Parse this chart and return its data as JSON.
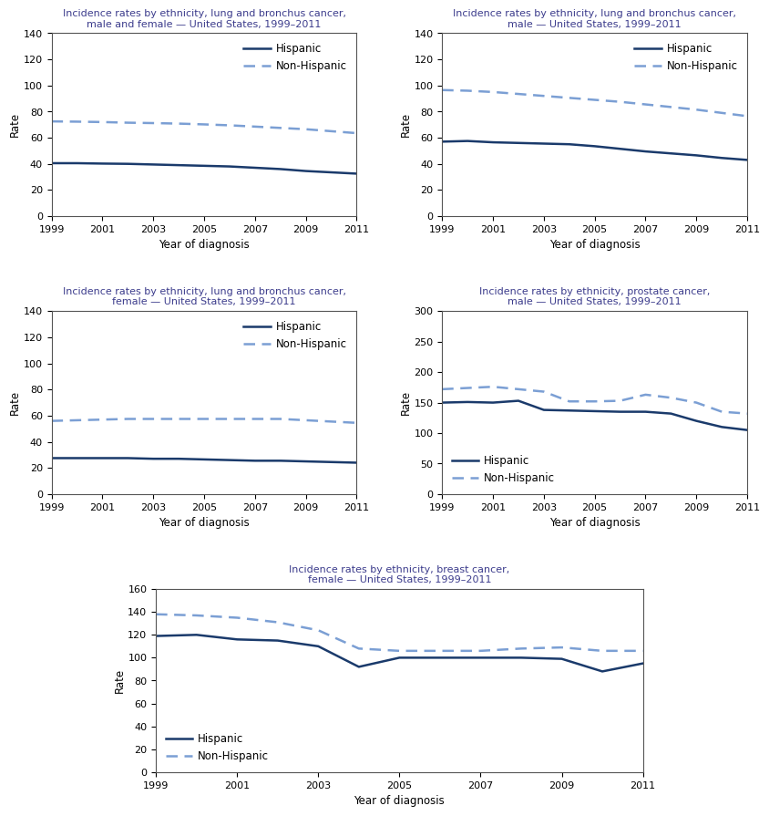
{
  "years": [
    1999,
    2000,
    2001,
    2002,
    2003,
    2004,
    2005,
    2006,
    2007,
    2008,
    2009,
    2010,
    2011
  ],
  "lung_both": {
    "title": "Incidence rates by ethnicity, lung and bronchus cancer,\nmale and female — United States, 1999–2011",
    "hispanic": [
      40.5,
      40.5,
      40.2,
      40.0,
      39.5,
      39.0,
      38.5,
      38.0,
      37.0,
      36.0,
      34.5,
      33.5,
      32.5
    ],
    "non_hispanic": [
      72.5,
      72.3,
      72.0,
      71.5,
      71.2,
      70.8,
      70.2,
      69.5,
      68.5,
      67.5,
      66.5,
      65.0,
      63.5
    ],
    "ylim": [
      0,
      140
    ],
    "yticks": [
      0,
      20,
      40,
      60,
      80,
      100,
      120,
      140
    ],
    "legend_loc": "upper right"
  },
  "lung_male": {
    "title": "Incidence rates by ethnicity, lung and bronchus cancer,\nmale — United States, 1999–2011",
    "hispanic": [
      57.0,
      57.5,
      56.5,
      56.0,
      55.5,
      55.0,
      53.5,
      51.5,
      49.5,
      48.0,
      46.5,
      44.5,
      43.0
    ],
    "non_hispanic": [
      96.5,
      96.0,
      95.0,
      93.5,
      92.0,
      90.5,
      89.0,
      87.5,
      85.5,
      83.5,
      81.5,
      79.0,
      76.5
    ],
    "ylim": [
      0,
      140
    ],
    "yticks": [
      0,
      20,
      40,
      60,
      80,
      100,
      120,
      140
    ],
    "legend_loc": "upper right"
  },
  "lung_female": {
    "title": "Incidence rates by ethnicity, lung and bronchus cancer,\nfemale — United States, 1999–2011",
    "hispanic": [
      27.5,
      27.5,
      27.5,
      27.5,
      27.0,
      27.0,
      26.5,
      26.0,
      25.5,
      25.5,
      25.0,
      24.5,
      24.0
    ],
    "non_hispanic": [
      56.0,
      56.5,
      57.0,
      57.5,
      57.5,
      57.5,
      57.5,
      57.5,
      57.5,
      57.5,
      56.5,
      55.5,
      54.5
    ],
    "ylim": [
      0,
      140
    ],
    "yticks": [
      0,
      20,
      40,
      60,
      80,
      100,
      120,
      140
    ],
    "legend_loc": "upper right"
  },
  "prostate_male": {
    "title": "Incidence rates by ethnicity, prostate cancer,\nmale — United States, 1999–2011",
    "hispanic": [
      150,
      151,
      150,
      153,
      138,
      137,
      136,
      135,
      135,
      132,
      120,
      110,
      105
    ],
    "non_hispanic": [
      172,
      174,
      176,
      172,
      168,
      152,
      152,
      153,
      163,
      158,
      150,
      135,
      132
    ],
    "ylim": [
      0,
      300
    ],
    "yticks": [
      0,
      50,
      100,
      150,
      200,
      250,
      300
    ],
    "legend_loc": "lower left"
  },
  "breast_female": {
    "title": "Incidence rates by ethnicity, breast cancer,\nfemale — United States, 1999–2011",
    "hispanic": [
      119,
      120,
      116,
      115,
      110,
      92,
      100,
      100,
      100,
      100,
      99,
      88,
      95
    ],
    "non_hispanic": [
      138,
      137,
      135,
      131,
      124,
      108,
      106,
      106,
      106,
      108,
      109,
      106,
      106
    ],
    "ylim": [
      0,
      160
    ],
    "yticks": [
      0,
      20,
      40,
      60,
      80,
      100,
      120,
      140,
      160
    ],
    "legend_loc": "lower left"
  },
  "hispanic_color": "#1a3a6b",
  "non_hispanic_color": "#7b9fd4",
  "hispanic_linestyle": "-",
  "non_hispanic_linestyle": "--",
  "linewidth": 1.8,
  "xlabel": "Year of diagnosis",
  "ylabel": "Rate",
  "title_color": "#3c3c8c",
  "title_fontsize": 8.0,
  "axis_label_fontsize": 8.5,
  "tick_fontsize": 8.0,
  "legend_fontsize": 8.5,
  "background_color": "#ffffff",
  "xticks": [
    1999,
    2001,
    2003,
    2005,
    2007,
    2009,
    2011
  ]
}
